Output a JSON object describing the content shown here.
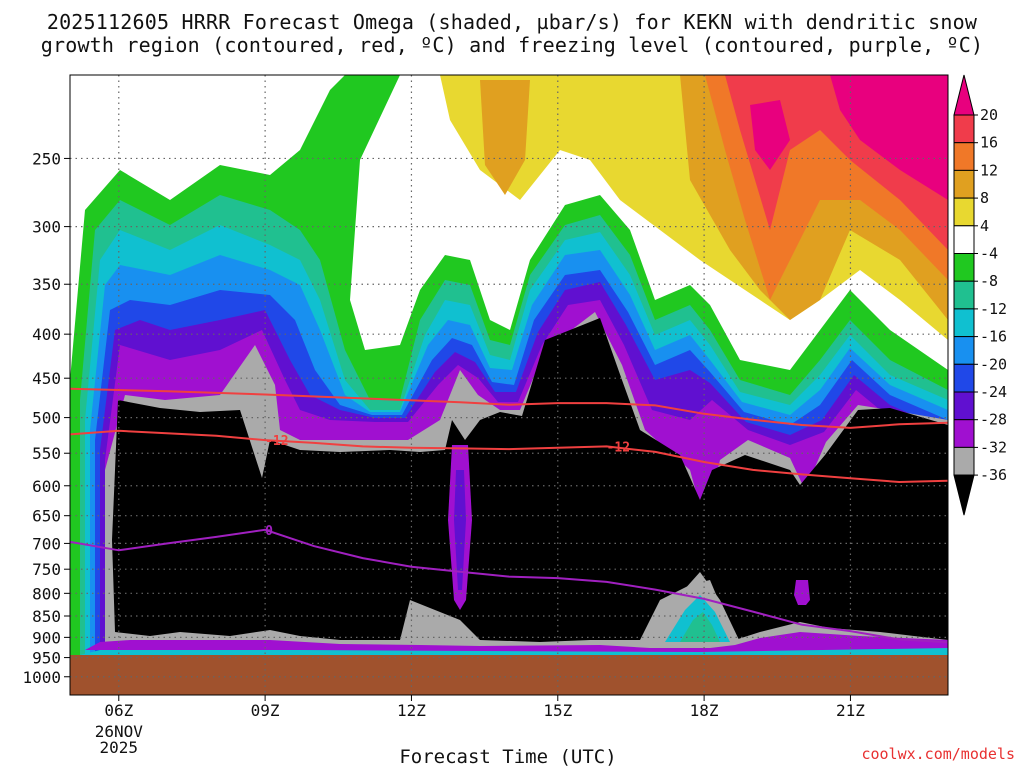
{
  "title_line1": "2025112605 HRRR Forecast Omega (shaded, µbar/s) for KEKN with dendritic snow",
  "title_line2": "growth region (contoured, red, ºC) and freezing level (contoured, purple, ºC)",
  "credit": "coolwx.com/models",
  "chart_data": {
    "type": "heatmap",
    "title": "2025112605 HRRR Forecast Omega (shaded, µbar/s) for KEKN with dendritic snow growth region (contoured, red, ºC) and freezing level (contoured, purple, ºC)",
    "xlabel": "Forecast Time (UTC)",
    "ylabel": "",
    "x_ticks": [
      {
        "label": "06Z",
        "sub": [
          "26NOV",
          "2025"
        ],
        "hour": 6
      },
      {
        "label": "09Z",
        "sub": [],
        "hour": 9
      },
      {
        "label": "12Z",
        "sub": [],
        "hour": 12
      },
      {
        "label": "15Z",
        "sub": [],
        "hour": 15
      },
      {
        "label": "18Z",
        "sub": [],
        "hour": 18
      },
      {
        "label": "21Z",
        "sub": [],
        "hour": 21
      }
    ],
    "xlim": [
      5,
      23
    ],
    "y_ticks": [
      250,
      300,
      350,
      400,
      450,
      500,
      550,
      600,
      650,
      700,
      750,
      800,
      850,
      900,
      950,
      1000
    ],
    "ylim_hPa": [
      1050,
      200
    ],
    "y_scale": "log-pressure",
    "grid": "dotted",
    "surface_pressure_hPa": 935,
    "colorbar": {
      "labels": [
        "20",
        "16",
        "12",
        "8",
        "4",
        "-4",
        "-8",
        "-12",
        "-16",
        "-20",
        "-24",
        "-28",
        "-32",
        "-36"
      ],
      "colors": [
        "#e8007e",
        "#f03c4b",
        "#f07828",
        "#e0a020",
        "#e8d830",
        "#ffffff",
        "#20c820",
        "#20c090",
        "#10c0d0",
        "#1890f0",
        "#2048e8",
        "#6010d0",
        "#a010d0",
        "#aaaaaa",
        "#000000"
      ]
    },
    "contours": [
      {
        "name": "-12",
        "color": "#f04040",
        "label": "-12",
        "points": [
          [
            5.0,
            523
          ],
          [
            6.0,
            518
          ],
          [
            8.0,
            525
          ],
          [
            9.0,
            531
          ],
          [
            10.0,
            535
          ],
          [
            11.0,
            540
          ],
          [
            12.0,
            542
          ],
          [
            13.0,
            543
          ],
          [
            14.0,
            544
          ],
          [
            15.0,
            542
          ],
          [
            16.0,
            540
          ],
          [
            17.0,
            548
          ],
          [
            18.0,
            563
          ],
          [
            19.0,
            575
          ],
          [
            20.0,
            582
          ],
          [
            21.0,
            588
          ],
          [
            22.0,
            594
          ],
          [
            23.0,
            592
          ]
        ]
      },
      {
        "name": "-12 upper",
        "color": "#f04040",
        "label": "",
        "points": [
          [
            5.0,
            463
          ],
          [
            7.0,
            466
          ],
          [
            9.0,
            470
          ],
          [
            11.0,
            475
          ],
          [
            13.0,
            480
          ],
          [
            14.0,
            483
          ],
          [
            15.0,
            481
          ],
          [
            16.0,
            481
          ],
          [
            17.0,
            484
          ],
          [
            18.0,
            495
          ],
          [
            19.0,
            503
          ],
          [
            20.0,
            510
          ],
          [
            21.0,
            514
          ],
          [
            22.0,
            509
          ],
          [
            23.0,
            507
          ]
        ]
      },
      {
        "name": "0",
        "color": "#a020c0",
        "label": "0",
        "points": [
          [
            5.0,
            697
          ],
          [
            6.0,
            713
          ],
          [
            7.0,
            700
          ],
          [
            8.0,
            688
          ],
          [
            9.0,
            675
          ],
          [
            10.0,
            705
          ],
          [
            11.0,
            728
          ],
          [
            12.0,
            745
          ],
          [
            13.0,
            755
          ],
          [
            14.0,
            765
          ],
          [
            15.0,
            768
          ],
          [
            16.0,
            776
          ],
          [
            17.0,
            792
          ],
          [
            18.0,
            812
          ],
          [
            19.0,
            840
          ],
          [
            20.0,
            870
          ],
          [
            21.0,
            885
          ],
          [
            22.0,
            905
          ],
          [
            23.0,
            912
          ]
        ]
      }
    ]
  }
}
